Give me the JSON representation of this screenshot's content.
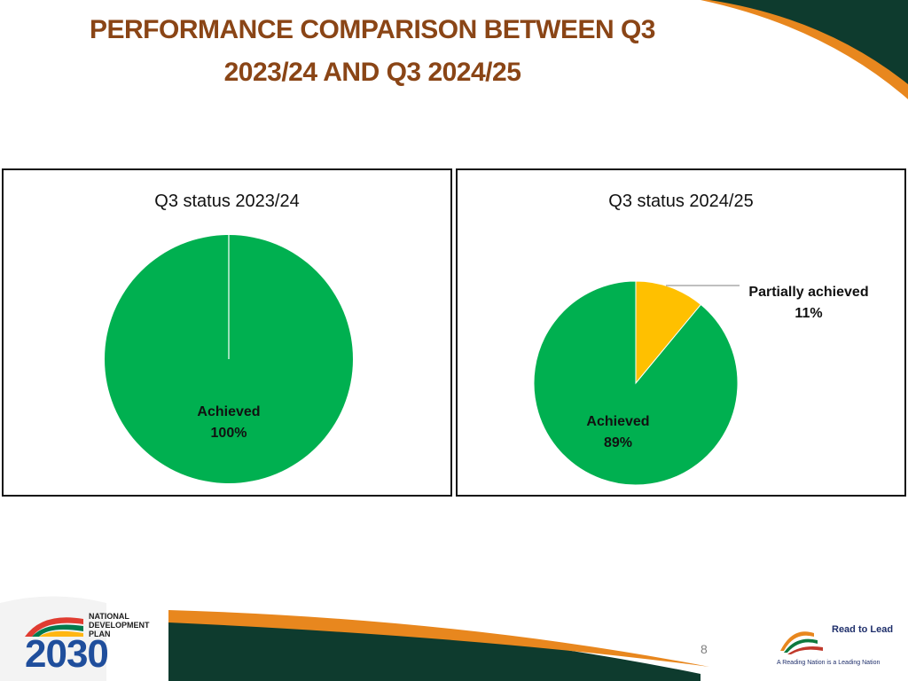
{
  "title_lines": [
    "PERFORMANCE COMPARISON BETWEEN Q3",
    "2023/24 AND Q3 2024/25"
  ],
  "chart_data": [
    {
      "type": "pie",
      "title": "Q3 status 2023/24",
      "slices": [
        {
          "label": "Achieved",
          "value": 100,
          "display": "100%",
          "color": "#00b050"
        }
      ]
    },
    {
      "type": "pie",
      "title": "Q3 status 2024/25",
      "slices": [
        {
          "label": "Partially achieved",
          "value": 11,
          "display": "11%",
          "color": "#ffc000"
        },
        {
          "label": "Achieved",
          "value": 89,
          "display": "89%",
          "color": "#00b050"
        }
      ]
    }
  ],
  "footer": {
    "ndp_lines": [
      "NATIONAL",
      "DEVELOPMENT",
      "PLAN"
    ],
    "ndp_year": "2030",
    "page_number": "8",
    "rtl_name": "Read to Lead",
    "rtl_slogan": "A Reading Nation is a Leading Nation"
  },
  "colors": {
    "title": "#8a4516",
    "dark_green": "#0e3b2e",
    "orange": "#e8871e",
    "achieved": "#00b050",
    "partial": "#ffc000"
  }
}
